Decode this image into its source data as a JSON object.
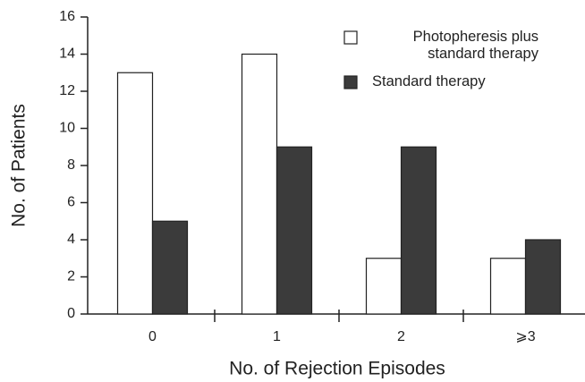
{
  "chart_data": {
    "type": "bar",
    "xlabel": "No. of Rejection Episodes",
    "ylabel": "No. of Patients",
    "categories": [
      "0",
      "1",
      "2",
      "⩾3"
    ],
    "series": [
      {
        "name": "Photopheresis plus standard therapy",
        "color": "#ffffff",
        "values": [
          13,
          14,
          3,
          3
        ]
      },
      {
        "name": "Standard therapy",
        "color": "#3b3b3b",
        "values": [
          5,
          9,
          9,
          4
        ]
      }
    ],
    "ylim": [
      0,
      16
    ],
    "yticks": [
      0,
      2,
      4,
      6,
      8,
      10,
      12,
      14,
      16
    ],
    "legend": "upper right"
  }
}
